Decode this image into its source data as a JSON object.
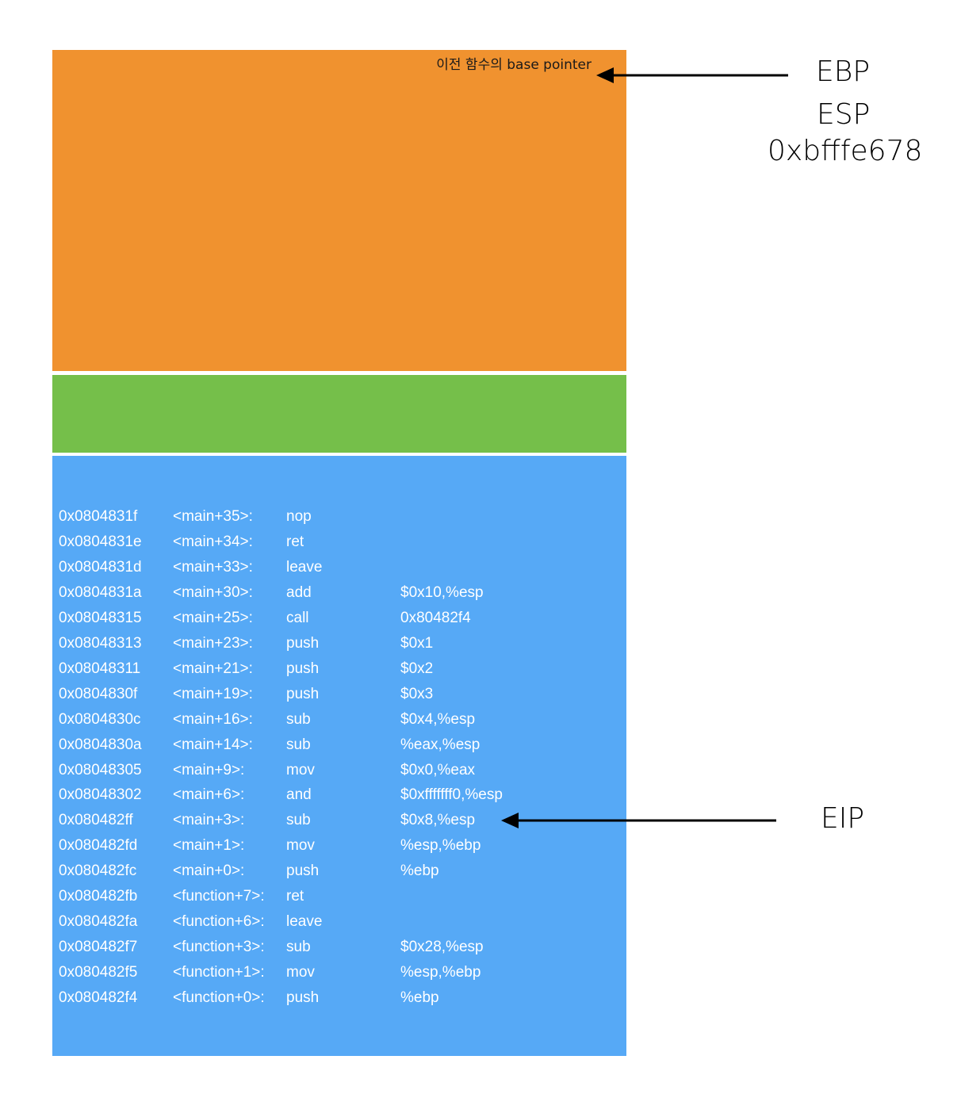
{
  "stack": {
    "frame_label": "이전 함수의 base pointer"
  },
  "registers": {
    "ebp": "EBP",
    "esp": "ESP",
    "esp_value": "0xbfffe678",
    "eip": "EIP"
  },
  "instructions": [
    {
      "addr": "0x0804831f",
      "sym": "<main+35>:",
      "op": "nop",
      "args": ""
    },
    {
      "addr": "0x0804831e",
      "sym": "<main+34>:",
      "op": "ret",
      "args": ""
    },
    {
      "addr": "0x0804831d",
      "sym": "<main+33>:",
      "op": "leave",
      "args": ""
    },
    {
      "addr": "0x0804831a",
      "sym": "<main+30>:",
      "op": "add",
      "args": "$0x10,%esp"
    },
    {
      "addr": "0x08048315",
      "sym": "<main+25>:",
      "op": "call",
      "args": "0x80482f4"
    },
    {
      "addr": "0x08048313",
      "sym": "<main+23>:",
      "op": "push",
      "args": "$0x1"
    },
    {
      "addr": "0x08048311",
      "sym": "<main+21>:",
      "op": "push",
      "args": "$0x2"
    },
    {
      "addr": "0x0804830f",
      "sym": "<main+19>:",
      "op": "push",
      "args": "$0x3"
    },
    {
      "addr": "0x0804830c",
      "sym": "<main+16>:",
      "op": "sub",
      "args": "$0x4,%esp"
    },
    {
      "addr": "0x0804830a",
      "sym": "<main+14>:",
      "op": "sub",
      "args": "%eax,%esp"
    },
    {
      "addr": "0x08048305",
      "sym": "<main+9>:",
      "op": "mov",
      "args": "$0x0,%eax"
    },
    {
      "addr": "0x08048302",
      "sym": "<main+6>:",
      "op": "and",
      "args": "$0xfffffff0,%esp"
    },
    {
      "addr": "0x080482ff",
      "sym": "<main+3>:",
      "op": "sub",
      "args": "$0x8,%esp"
    },
    {
      "addr": "0x080482fd",
      "sym": "<main+1>:",
      "op": "mov",
      "args": "%esp,%ebp"
    },
    {
      "addr": "0x080482fc",
      "sym": "<main+0>:",
      "op": "push",
      "args": "%ebp"
    },
    {
      "addr": "0x080482fb",
      "sym": "<function+7>:",
      "op": "ret",
      "args": ""
    },
    {
      "addr": "0x080482fa",
      "sym": "<function+6>:",
      "op": "leave",
      "args": ""
    },
    {
      "addr": "0x080482f7",
      "sym": "<function+3>:",
      "op": "sub",
      "args": "$0x28,%esp"
    },
    {
      "addr": "0x080482f5",
      "sym": "<function+1>:",
      "op": "mov",
      "args": "%esp,%ebp"
    },
    {
      "addr": "0x080482f4",
      "sym": "<function+0>:",
      "op": "push",
      "args": "%ebp"
    }
  ],
  "colors": {
    "stack_top": "#f0922f",
    "stack_mid": "#75bf4a",
    "code_area": "#56a9f6"
  }
}
